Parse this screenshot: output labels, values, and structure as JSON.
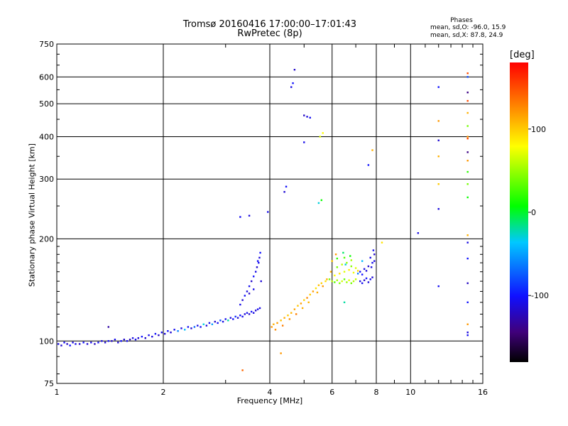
{
  "chart_data": {
    "type": "scatter",
    "title_line1": "Tromsø 20160416 17:00:00–17:01:43",
    "title_line2": "RwPretec (8p)",
    "stats": {
      "heading": "Phases",
      "o_mode": "mean, sd,O: -96.0, 15.9",
      "x_mode": "mean, sd,X:  87.8, 24.9"
    },
    "xlabel": "Frequency [MHz]",
    "ylabel": "Stationary phase Virtual Height [km]",
    "x_scale": "log",
    "y_scale": "log",
    "xlim": [
      1,
      16
    ],
    "ylim": [
      75,
      750
    ],
    "x_ticks": [
      1,
      2,
      4,
      6,
      8,
      10,
      16
    ],
    "x_minor": [
      3,
      5,
      7,
      9,
      11,
      12,
      13,
      14,
      15
    ],
    "y_ticks": [
      75,
      100,
      200,
      300,
      400,
      500,
      600,
      750
    ],
    "grid": true,
    "colorbar": {
      "label": "[deg]",
      "range": [
        -180,
        180
      ],
      "ticks": [
        100,
        0,
        -100
      ]
    },
    "series": [
      {
        "points": [
          [
            1.01,
            98,
            -110
          ],
          [
            1.03,
            97,
            -115
          ],
          [
            1.05,
            99,
            -105
          ],
          [
            1.07,
            98,
            -120
          ],
          [
            1.09,
            97,
            -100
          ],
          [
            1.11,
            99,
            -112
          ],
          [
            1.13,
            98,
            -108
          ],
          [
            1.16,
            98,
            -118
          ],
          [
            1.19,
            99,
            -102
          ],
          [
            1.22,
            98,
            -114
          ],
          [
            1.25,
            99,
            -109
          ],
          [
            1.28,
            98,
            -121
          ],
          [
            1.31,
            99,
            -104
          ],
          [
            1.34,
            100,
            -111
          ],
          [
            1.37,
            99,
            -116
          ],
          [
            1.4,
            100,
            -103
          ],
          [
            1.43,
            100,
            -119
          ],
          [
            1.46,
            101,
            -107
          ],
          [
            1.49,
            99,
            -113
          ],
          [
            1.52,
            100,
            -101
          ],
          [
            1.55,
            101,
            -117
          ],
          [
            1.58,
            100,
            -106
          ],
          [
            1.61,
            101,
            -122
          ],
          [
            1.64,
            102,
            -110
          ],
          [
            1.67,
            101,
            -105
          ],
          [
            1.7,
            102,
            -115
          ],
          [
            1.74,
            103,
            -100
          ],
          [
            1.78,
            102,
            -118
          ],
          [
            1.82,
            104,
            -108
          ],
          [
            1.86,
            103,
            -112
          ],
          [
            1.9,
            105,
            -103
          ],
          [
            1.94,
            104,
            -120
          ],
          [
            1.98,
            106,
            -107
          ],
          [
            2.02,
            105,
            -113
          ],
          [
            2.06,
            107,
            -101
          ],
          [
            2.1,
            106,
            -116
          ],
          [
            2.15,
            108,
            -105
          ],
          [
            2.2,
            107,
            -60
          ],
          [
            2.25,
            109,
            -111
          ],
          [
            2.3,
            108,
            -40
          ],
          [
            2.35,
            110,
            -104
          ],
          [
            2.4,
            109,
            -117
          ],
          [
            2.45,
            110,
            -70
          ],
          [
            2.5,
            111,
            -109
          ],
          [
            2.55,
            110,
            -102
          ],
          [
            2.6,
            112,
            -30
          ],
          [
            2.65,
            111,
            -114
          ],
          [
            2.7,
            113,
            -106
          ],
          [
            2.75,
            112,
            -50
          ],
          [
            2.8,
            114,
            -118
          ],
          [
            2.85,
            113,
            -103
          ],
          [
            2.9,
            115,
            -80
          ],
          [
            2.95,
            114,
            -110
          ],
          [
            3.0,
            116,
            -107
          ],
          [
            3.05,
            115,
            -20
          ],
          [
            3.1,
            117,
            -112
          ],
          [
            3.15,
            116,
            -104
          ],
          [
            3.2,
            118,
            -90
          ],
          [
            3.25,
            117,
            -115
          ],
          [
            3.3,
            119,
            -101
          ],
          [
            3.35,
            118,
            -108
          ],
          [
            3.4,
            120,
            -113
          ],
          [
            3.45,
            121,
            -106
          ],
          [
            3.5,
            120,
            -119
          ],
          [
            3.55,
            122,
            -103
          ],
          [
            3.6,
            121,
            -110
          ],
          [
            3.65,
            123,
            -117
          ],
          [
            3.7,
            124,
            -105
          ],
          [
            3.75,
            125,
            -111
          ]
        ]
      },
      {
        "points": [
          [
            3.3,
            128,
            -108
          ],
          [
            3.35,
            132,
            -115
          ],
          [
            3.4,
            136,
            -103
          ],
          [
            3.45,
            140,
            -112
          ],
          [
            3.5,
            145,
            -106
          ],
          [
            3.55,
            150,
            -118
          ],
          [
            3.6,
            155,
            -101
          ],
          [
            3.65,
            160,
            -110
          ],
          [
            3.68,
            165,
            -116
          ],
          [
            3.72,
            170,
            -105
          ],
          [
            3.74,
            176,
            -112
          ],
          [
            3.76,
            182,
            -100
          ],
          [
            3.78,
            150,
            -114
          ],
          [
            3.6,
            142,
            -108
          ],
          [
            3.5,
            138,
            -120
          ],
          [
            3.7,
            172,
            -104
          ]
        ]
      },
      {
        "points": [
          [
            3.3,
            232,
            -105
          ],
          [
            3.5,
            234,
            -112
          ],
          [
            3.95,
            240,
            -108
          ],
          [
            4.4,
            275,
            -115
          ],
          [
            4.45,
            285,
            -102
          ],
          [
            4.6,
            560,
            -110
          ],
          [
            4.65,
            575,
            -100
          ],
          [
            4.7,
            630,
            -118
          ],
          [
            5.0,
            462,
            -120
          ],
          [
            5.1,
            458,
            -112
          ],
          [
            5.2,
            455,
            -105
          ],
          [
            5.0,
            385,
            -108
          ],
          [
            5.5,
            255,
            -30
          ],
          [
            5.6,
            260,
            10
          ],
          [
            5.55,
            400,
            70
          ],
          [
            5.65,
            410,
            80
          ],
          [
            7.6,
            330,
            -100
          ],
          [
            7.8,
            365,
            110
          ],
          [
            8.3,
            195,
            90
          ],
          [
            10.5,
            208,
            -110
          ],
          [
            12.0,
            560,
            -100
          ],
          [
            12.0,
            445,
            120
          ],
          [
            12.0,
            390,
            -115
          ],
          [
            12.0,
            350,
            110
          ],
          [
            12.0,
            290,
            100
          ],
          [
            12.0,
            245,
            -112
          ],
          [
            12.0,
            145,
            -105
          ],
          [
            14.5,
            615,
            150
          ],
          [
            14.5,
            600,
            -80
          ],
          [
            14.5,
            540,
            -140
          ],
          [
            14.5,
            510,
            150
          ],
          [
            14.5,
            470,
            110
          ],
          [
            14.5,
            430,
            40
          ],
          [
            14.5,
            400,
            120
          ],
          [
            14.5,
            395,
            150
          ],
          [
            14.5,
            360,
            -140
          ],
          [
            14.5,
            340,
            120
          ],
          [
            14.5,
            315,
            20
          ],
          [
            14.5,
            290,
            40
          ],
          [
            14.5,
            265,
            10
          ],
          [
            14.5,
            205,
            110
          ],
          [
            14.5,
            195,
            -110
          ],
          [
            14.5,
            175,
            -100
          ],
          [
            14.5,
            148,
            -120
          ],
          [
            14.5,
            130,
            -100
          ],
          [
            14.5,
            112,
            120
          ],
          [
            14.5,
            106,
            -112
          ],
          [
            14.5,
            104,
            -105
          ],
          [
            3.35,
            82,
            140
          ],
          [
            4.3,
            92,
            120
          ],
          [
            1.4,
            110,
            -130
          ]
        ]
      },
      {
        "points": [
          [
            4.05,
            110,
            120
          ],
          [
            4.1,
            112,
            110
          ],
          [
            4.15,
            108,
            125
          ],
          [
            4.2,
            113,
            118
          ],
          [
            4.3,
            115,
            105
          ],
          [
            4.35,
            111,
            130
          ],
          [
            4.4,
            117,
            112
          ],
          [
            4.5,
            119,
            100
          ],
          [
            4.55,
            116,
            123
          ],
          [
            4.6,
            121,
            108
          ],
          [
            4.7,
            124,
            115
          ],
          [
            4.75,
            120,
            130
          ],
          [
            4.8,
            127,
            102
          ],
          [
            4.9,
            129,
            118
          ],
          [
            4.95,
            125,
            111
          ],
          [
            5.0,
            132,
            96
          ],
          [
            5.1,
            134,
            125
          ],
          [
            5.15,
            130,
            108
          ],
          [
            5.2,
            137,
            100
          ],
          [
            5.3,
            140,
            118
          ],
          [
            5.4,
            143,
            90
          ],
          [
            5.45,
            139,
            112
          ],
          [
            5.5,
            146,
            105
          ],
          [
            5.6,
            148,
            98
          ],
          [
            5.65,
            145,
            120
          ],
          [
            5.75,
            150,
            92
          ],
          [
            5.8,
            152,
            110
          ]
        ]
      },
      {
        "points": [
          [
            5.9,
            152,
            40
          ],
          [
            6.0,
            150,
            60
          ],
          [
            6.1,
            149,
            30
          ],
          [
            6.2,
            151,
            55
          ],
          [
            6.3,
            148,
            45
          ],
          [
            6.4,
            150,
            65
          ],
          [
            6.5,
            152,
            35
          ],
          [
            6.6,
            149,
            50
          ],
          [
            6.7,
            151,
            70
          ],
          [
            6.8,
            148,
            40
          ],
          [
            6.9,
            150,
            58
          ],
          [
            7.0,
            152,
            62
          ],
          [
            6.1,
            156,
            80
          ],
          [
            6.3,
            158,
            90
          ],
          [
            6.5,
            160,
            70
          ],
          [
            6.7,
            162,
            85
          ],
          [
            6.9,
            159,
            75
          ],
          [
            7.1,
            161,
            95
          ],
          [
            6.2,
            165,
            40
          ],
          [
            6.4,
            168,
            60
          ],
          [
            6.6,
            170,
            50
          ],
          [
            6.8,
            166,
            45
          ],
          [
            7.0,
            164,
            70
          ],
          [
            6.0,
            172,
            100
          ],
          [
            6.2,
            175,
            20
          ],
          [
            6.5,
            176,
            30
          ],
          [
            6.8,
            173,
            55
          ],
          [
            5.95,
            160,
            110
          ],
          [
            6.15,
            180,
            120
          ],
          [
            6.45,
            182,
            -10
          ],
          [
            6.75,
            178,
            10
          ],
          [
            6.5,
            130,
            -20
          ],
          [
            6.55,
            168,
            -30
          ]
        ]
      },
      {
        "points": [
          [
            7.2,
            150,
            -110
          ],
          [
            7.3,
            148,
            -105
          ],
          [
            7.4,
            151,
            -118
          ],
          [
            7.5,
            153,
            -100
          ],
          [
            7.6,
            149,
            -112
          ],
          [
            7.7,
            152,
            -108
          ],
          [
            7.8,
            154,
            -115
          ],
          [
            7.2,
            160,
            -103
          ],
          [
            7.4,
            163,
            -110
          ],
          [
            7.6,
            166,
            -117
          ],
          [
            7.8,
            170,
            -106
          ],
          [
            7.9,
            172,
            -112
          ],
          [
            7.3,
            157,
            -100
          ],
          [
            7.5,
            161,
            -113
          ],
          [
            7.7,
            176,
            -108
          ],
          [
            7.9,
            180,
            -118
          ],
          [
            7.85,
            185,
            -105
          ],
          [
            7.75,
            165,
            -111
          ],
          [
            7.1,
            158,
            -60
          ],
          [
            7.3,
            172,
            -40
          ]
        ]
      }
    ]
  }
}
